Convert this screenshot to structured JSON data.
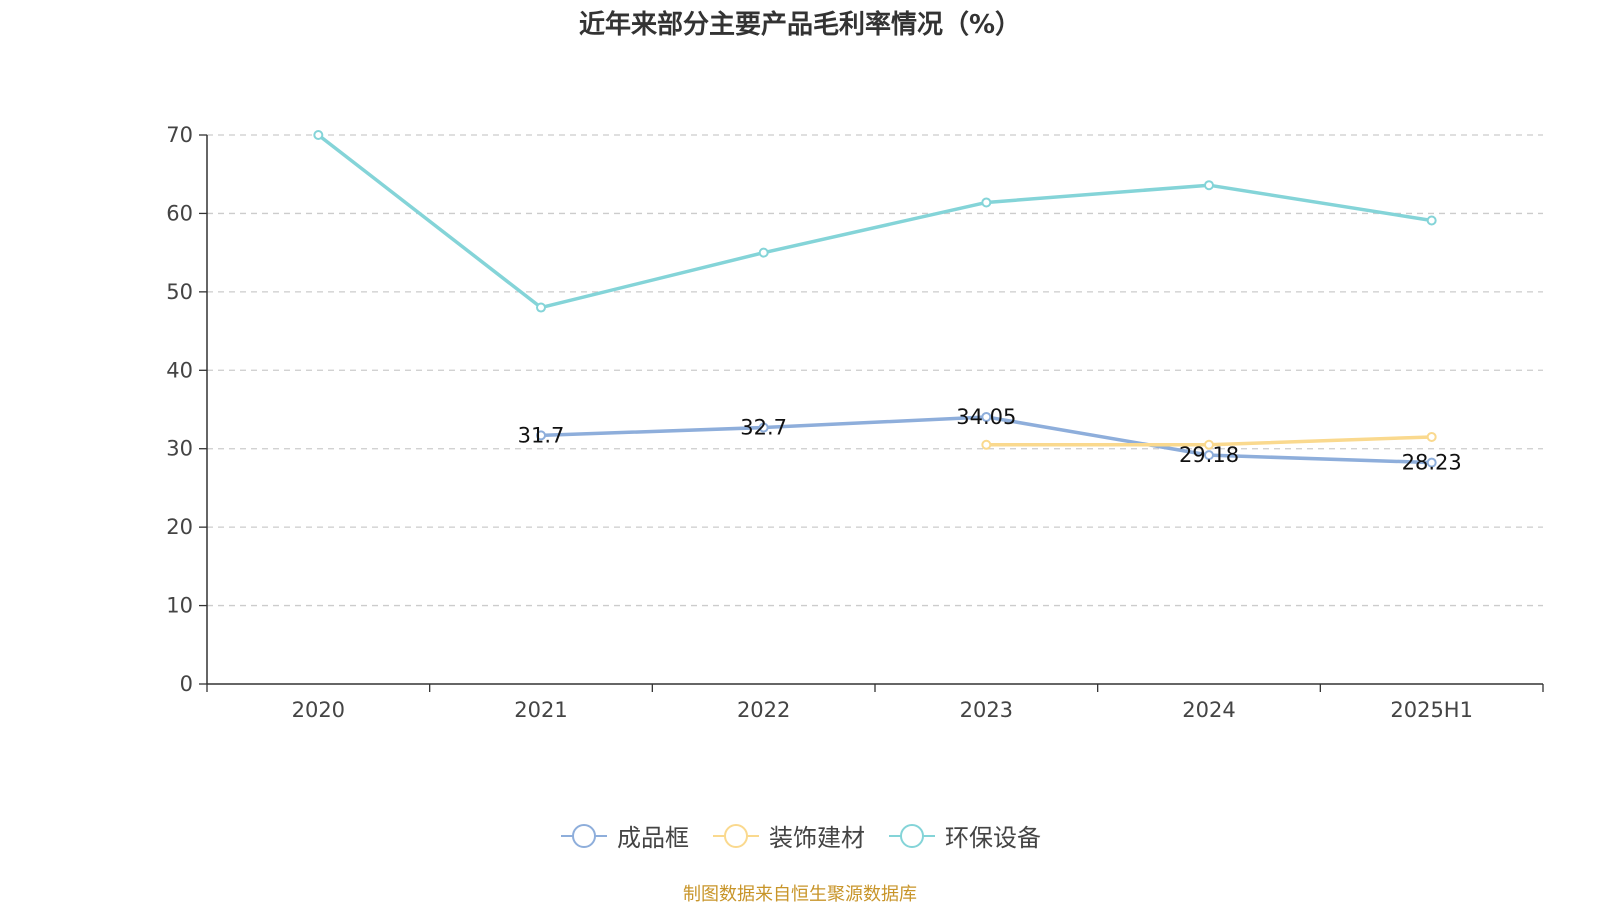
{
  "chart_data": {
    "type": "line",
    "title": "近年来部分主要产品毛利率情况（%）",
    "categories": [
      "2020",
      "2021",
      "2022",
      "2023",
      "2024",
      "2025H1"
    ],
    "ylim": [
      0,
      70
    ],
    "yticks": [
      0,
      10,
      20,
      30,
      40,
      50,
      60,
      70
    ],
    "grid": true,
    "legend_position": "bottom",
    "series": [
      {
        "name": "成品框",
        "color": "#8eaedb",
        "values": [
          null,
          31.7,
          32.7,
          34.05,
          29.18,
          28.23
        ],
        "show_labels": true
      },
      {
        "name": "装饰建材",
        "color": "#fad98e",
        "values": [
          null,
          null,
          null,
          30.5,
          30.5,
          31.5
        ],
        "show_labels": false
      },
      {
        "name": "环保设备",
        "color": "#84d4d8",
        "values": [
          70,
          48,
          55,
          61.4,
          63.6,
          59.1
        ],
        "show_labels": false
      }
    ]
  },
  "legend": {
    "items": [
      "成品框",
      "装饰建材",
      "环保设备"
    ]
  },
  "source_note": "制图数据来自恒生聚源数据库"
}
